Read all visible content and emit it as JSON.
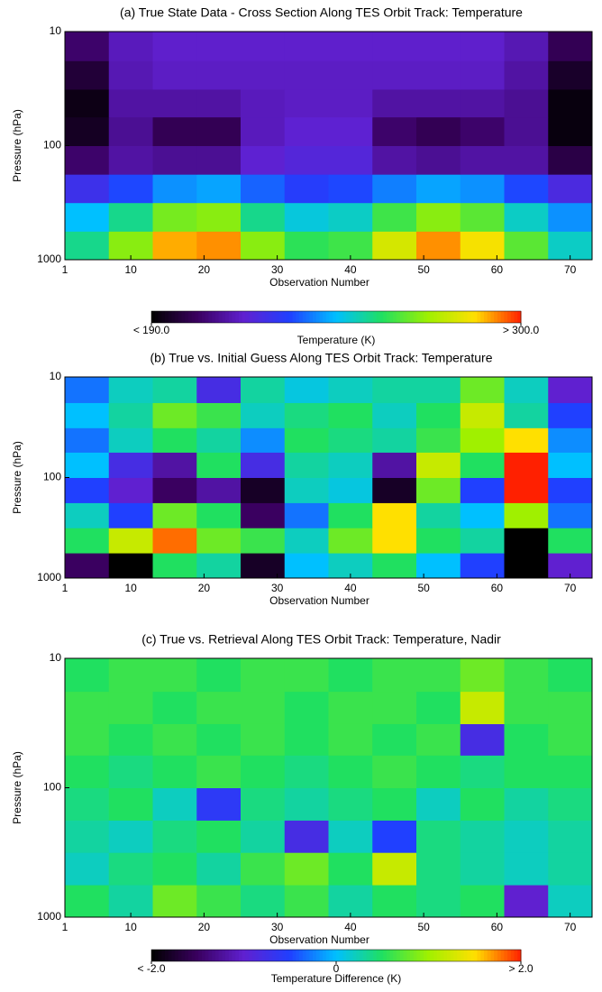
{
  "chart_data": [
    {
      "type": "heatmap",
      "title": "(a) True State Data - Cross Section Along TES Orbit Track:  Temperature",
      "xlabel": "Observation Number",
      "ylabel": "Pressure (hPa)",
      "xlim": [
        1,
        73
      ],
      "xticks": [
        1,
        10,
        20,
        30,
        40,
        50,
        60,
        70
      ],
      "ylim": [
        1000,
        10
      ],
      "yticks": [
        1000,
        100,
        10
      ],
      "yscale": "log",
      "x_edges": [
        1,
        7,
        13,
        19,
        25,
        31,
        37,
        43,
        49,
        55,
        61,
        67,
        73
      ],
      "y_edges": [
        1000,
        562,
        316,
        178,
        100,
        56,
        32,
        18,
        10
      ],
      "z": [
        [
          255,
          270,
          290,
          292,
          270,
          260,
          262,
          280,
          292,
          285,
          265,
          250
        ],
        [
          245,
          255,
          268,
          270,
          255,
          248,
          250,
          262,
          270,
          265,
          250,
          240
        ],
        [
          225,
          232,
          240,
          242,
          235,
          230,
          232,
          238,
          242,
          240,
          232,
          222
        ],
        [
          205,
          212,
          210,
          210,
          218,
          220,
          220,
          212,
          210,
          212,
          212,
          200
        ],
        [
          195,
          210,
          202,
          202,
          215,
          218,
          218,
          205,
          202,
          205,
          210,
          192
        ],
        [
          193,
          212,
          212,
          212,
          215,
          216,
          216,
          212,
          212,
          212,
          210,
          192
        ],
        [
          198,
          214,
          216,
          216,
          216,
          216,
          216,
          216,
          216,
          216,
          212,
          196
        ],
        [
          205,
          215,
          217,
          217,
          217,
          217,
          217,
          217,
          217,
          217,
          214,
          202
        ]
      ],
      "zlim": [
        190,
        300
      ],
      "colormap": [
        "#000000",
        "#3a0060",
        "#6020d0",
        "#2040ff",
        "#00c0ff",
        "#20e060",
        "#a0f000",
        "#ffe000",
        "#ff2000"
      ],
      "colorbar": {
        "label": "Temperature (K)",
        "ticks": [
          {
            "value": 190,
            "label": "< 190.0"
          },
          {
            "value": 300,
            "label": "> 300.0"
          }
        ]
      }
    },
    {
      "type": "heatmap",
      "title": "(b) True vs. Initial Guess Along TES Orbit Track:  Temperature",
      "xlabel": "Observation Number",
      "ylabel": "Pressure (hPa)",
      "xlim": [
        1,
        73
      ],
      "xticks": [
        1,
        10,
        20,
        30,
        40,
        50,
        60,
        70
      ],
      "ylim": [
        1000,
        10
      ],
      "yticks": [
        1000,
        100,
        10
      ],
      "yscale": "log",
      "x_edges": [
        1,
        7,
        13,
        19,
        25,
        31,
        37,
        43,
        49,
        55,
        61,
        67,
        73
      ],
      "y_edges": [
        1000,
        562,
        316,
        178,
        100,
        56,
        32,
        18,
        10
      ],
      "z": [
        [
          -1.5,
          -2,
          0.5,
          0.3,
          -1.8,
          0,
          0.2,
          0.5,
          0,
          -0.5,
          -2,
          -1
        ],
        [
          0.5,
          1.2,
          1.8,
          0.8,
          0.6,
          0.2,
          0.8,
          1.5,
          0.5,
          0.3,
          -2,
          0.5
        ],
        [
          0.2,
          -0.5,
          0.8,
          0.5,
          -1.5,
          -0.3,
          0.5,
          1.5,
          0.3,
          0,
          1,
          -0.3
        ],
        [
          -0.5,
          -1,
          -1.5,
          -1.2,
          -1.8,
          0.2,
          0.1,
          -1.8,
          0.8,
          -0.5,
          2,
          -0.5
        ],
        [
          0,
          -0.8,
          -1.2,
          0.5,
          -0.8,
          0.3,
          0.2,
          -1.2,
          1.2,
          0.5,
          2,
          0
        ],
        [
          -0.3,
          0.2,
          0.5,
          0.3,
          -0.2,
          0.5,
          0.4,
          0.3,
          0.6,
          1,
          1.5,
          -0.2
        ],
        [
          0,
          0.3,
          0.8,
          0.6,
          0.2,
          0.4,
          0.5,
          0.2,
          0.5,
          1.2,
          0.3,
          -0.5
        ],
        [
          -0.3,
          0.2,
          0.3,
          -0.8,
          0.3,
          0.1,
          0.2,
          0.3,
          0.3,
          0.8,
          0.2,
          -1
        ]
      ],
      "zlim": [
        -2,
        2
      ],
      "colormap": [
        "#000000",
        "#3a0060",
        "#6020d0",
        "#2040ff",
        "#00c0ff",
        "#20e060",
        "#a0f000",
        "#ffe000",
        "#ff2000"
      ]
    },
    {
      "type": "heatmap",
      "title": "(c) True vs. Retrieval Along TES Orbit Track:  Temperature, Nadir",
      "xlabel": "Observation Number",
      "ylabel": "Pressure (hPa)",
      "xlim": [
        1,
        73
      ],
      "xticks": [
        1,
        10,
        20,
        30,
        40,
        50,
        60,
        70
      ],
      "ylim": [
        1000,
        10
      ],
      "yticks": [
        1000,
        100,
        10
      ],
      "yscale": "log",
      "x_edges": [
        1,
        7,
        13,
        19,
        25,
        31,
        37,
        43,
        49,
        55,
        61,
        67,
        73
      ],
      "y_edges": [
        1000,
        562,
        316,
        178,
        100,
        56,
        32,
        18,
        10
      ],
      "z": [
        [
          0.5,
          0.3,
          0.8,
          0.6,
          0.4,
          0.6,
          0.3,
          0.5,
          0.4,
          0.5,
          -1,
          0.2
        ],
        [
          0.2,
          0.4,
          0.5,
          0.3,
          0.6,
          0.8,
          0.5,
          1.2,
          0.4,
          0.3,
          0.2,
          0.3
        ],
        [
          0.3,
          0.2,
          0.4,
          0.5,
          0.3,
          -0.8,
          0.2,
          -0.5,
          0.4,
          0.3,
          0.2,
          0.3
        ],
        [
          0.4,
          0.5,
          0.2,
          -0.6,
          0.4,
          0.3,
          0.4,
          0.5,
          0.2,
          0.5,
          0.3,
          0.4
        ],
        [
          0.5,
          0.4,
          0.5,
          0.6,
          0.5,
          0.4,
          0.5,
          0.6,
          0.5,
          0.4,
          0.5,
          0.5
        ],
        [
          0.6,
          0.5,
          0.6,
          0.5,
          0.6,
          0.5,
          0.6,
          0.5,
          0.6,
          -0.8,
          0.5,
          0.6
        ],
        [
          0.6,
          0.6,
          0.5,
          0.6,
          0.6,
          0.5,
          0.6,
          0.6,
          0.5,
          1.2,
          0.6,
          0.6
        ],
        [
          0.5,
          0.6,
          0.6,
          0.5,
          0.6,
          0.6,
          0.5,
          0.6,
          0.6,
          0.8,
          0.6,
          0.5
        ]
      ],
      "zlim": [
        -2,
        2
      ],
      "colormap": [
        "#000000",
        "#3a0060",
        "#6020d0",
        "#2040ff",
        "#00c0ff",
        "#20e060",
        "#a0f000",
        "#ffe000",
        "#ff2000"
      ],
      "colorbar": {
        "label": "Temperature Difference (K)",
        "ticks": [
          {
            "value": -2,
            "label": "< -2.0"
          },
          0,
          {
            "value": 2,
            "label": "> 2.0"
          }
        ]
      }
    }
  ]
}
